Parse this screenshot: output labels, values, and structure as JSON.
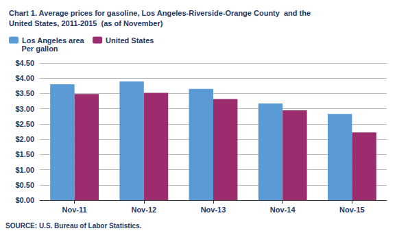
{
  "chart_data": {
    "type": "bar",
    "title": "Chart 1. Average prices for gasoline, Los Angeles-Riverside-Orange County  and the\nUnited States, 2011-2015  (as of November)",
    "ylabel": "Per gallon",
    "source": "SOURCE: U.S. Bureau of Labor Statistics.",
    "categories": [
      "Nov-11",
      "Nov-12",
      "Nov-13",
      "Nov-14",
      "Nov-15"
    ],
    "series": [
      {
        "name": "Los Angeles area",
        "color": "#5B9BD5",
        "values": [
          3.8,
          3.9,
          3.65,
          3.17,
          2.83
        ]
      },
      {
        "name": "United States",
        "color": "#9B2C6E",
        "values": [
          3.48,
          3.52,
          3.32,
          2.95,
          2.22
        ]
      }
    ],
    "ylim": [
      0,
      4.5
    ],
    "yticks": [
      {
        "value": 0.0,
        "label": "$0.00"
      },
      {
        "value": 0.5,
        "label": "$0.50"
      },
      {
        "value": 1.0,
        "label": "$1.00"
      },
      {
        "value": 1.5,
        "label": "$1.50"
      },
      {
        "value": 2.0,
        "label": "$2.00"
      },
      {
        "value": 2.5,
        "label": "$2.50"
      },
      {
        "value": 3.0,
        "label": "$3.00"
      },
      {
        "value": 3.5,
        "label": "$3.50"
      },
      {
        "value": 4.0,
        "label": "$4.00"
      },
      {
        "value": 4.5,
        "label": "$4.50"
      }
    ],
    "grid": true,
    "legend": "upper left"
  }
}
